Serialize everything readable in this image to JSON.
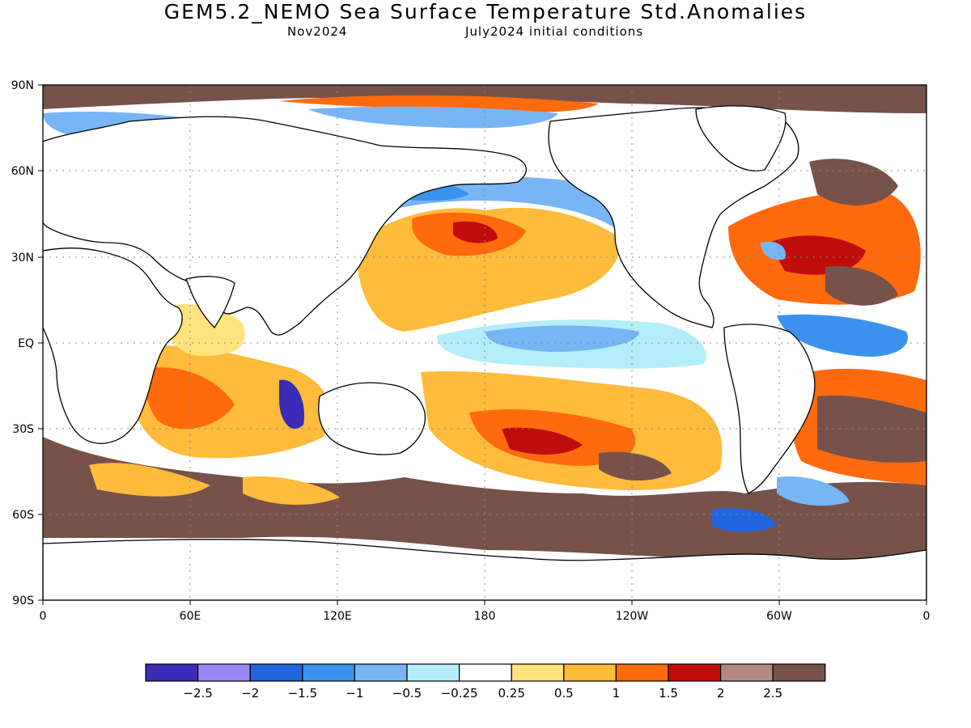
{
  "title": "GEM5.2_NEMO Sea Surface Temperature Std.Anomalies",
  "subtitle_left": "Nov2024",
  "subtitle_right": "July2024 initial conditions",
  "lat_labels": [
    "90N",
    "60N",
    "30N",
    "EQ",
    "30S",
    "60S",
    "90S"
  ],
  "lon_labels": [
    "0",
    "60E",
    "120E",
    "180",
    "120W",
    "60W",
    "0"
  ],
  "colorbar": {
    "colors": [
      "#3b2bb5",
      "#9a86f5",
      "#2166dc",
      "#3c92f0",
      "#78b5f5",
      "#b4eefa",
      "#ffffff",
      "#ffe37c",
      "#ffbb3b",
      "#ff6a0d",
      "#c10c0c",
      "#b28980",
      "#76524a"
    ],
    "labels": [
      "−2.5",
      "−2",
      "−1.5",
      "−1",
      "−0.5",
      "−0.25",
      "0.25",
      "0.5",
      "1",
      "1.5",
      "2",
      "2.5"
    ]
  }
}
